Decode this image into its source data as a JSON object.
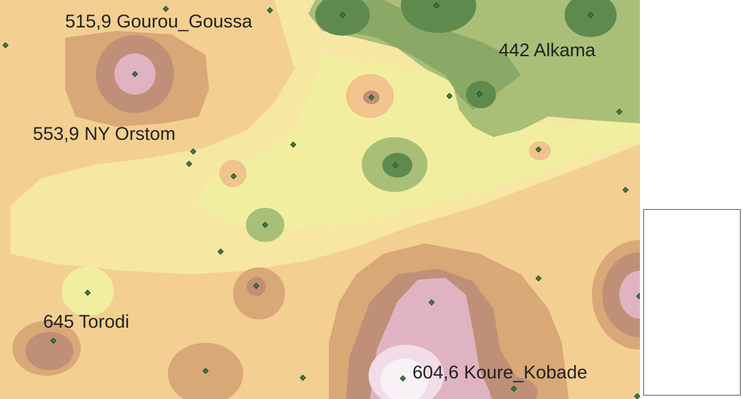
{
  "map": {
    "title": "",
    "colors": {
      "background": "#f3cf92",
      "light_yellow": "#f6e7a3",
      "pale_yellow": "#f1ef9f",
      "green_light": "#a9bf78",
      "green_mid": "#8aa967",
      "green_dark": "#5f8a4e",
      "tan": "#d9a877",
      "brown": "#c08f78",
      "pink": "#e0b3c2",
      "light_pink": "#f1dde8",
      "white_pink": "#f8f1f5",
      "station_fill": "#3f7a3f"
    },
    "station_labels": [
      {
        "text": "515,9 Gourou_Goussa"
      },
      {
        "text": "442 Alkama"
      },
      {
        "text": "553,9 NY Orstom"
      },
      {
        "text": "645 Torodi"
      },
      {
        "text": "604,6 Koure_Kobade"
      }
    ],
    "station_marker_icon": "diamond-icon"
  },
  "legend": {
    "title": ""
  }
}
